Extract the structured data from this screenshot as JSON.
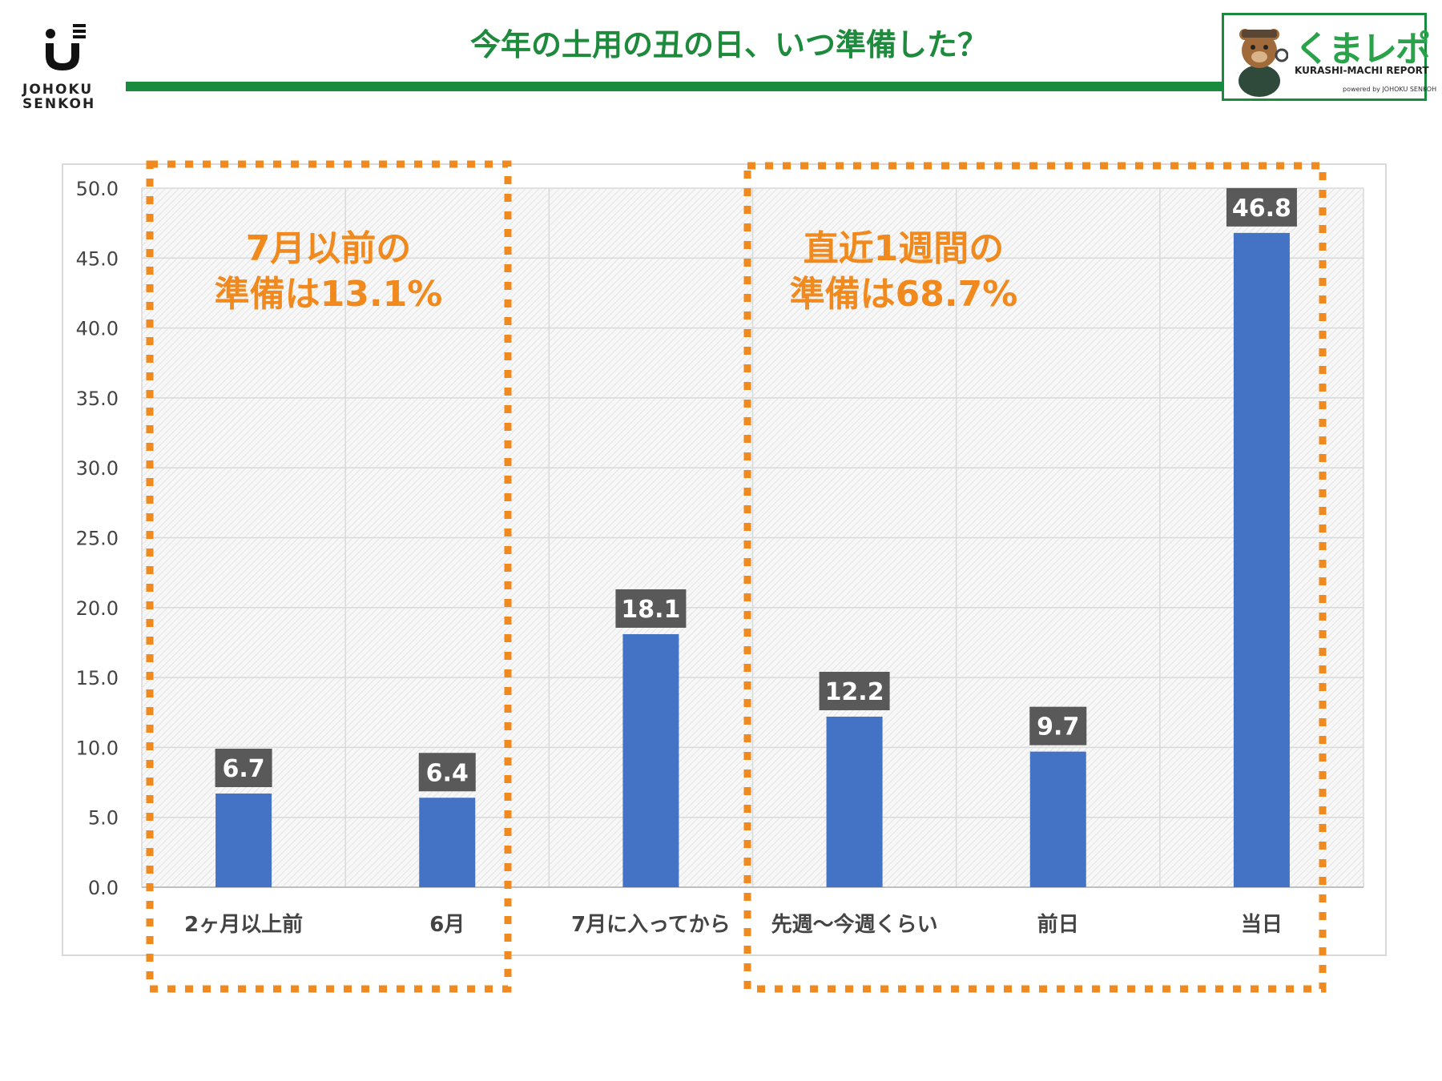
{
  "header": {
    "logo_line1": "JOHOKU",
    "logo_line2": "SENKOH",
    "title": "今年の土用の丑の日、いつ準備した？",
    "badge_title_a": "くまレポ",
    "badge_sub": "KURASHI-MACHI REPORT",
    "badge_powered": "powered by JOHOKU SENKOH"
  },
  "annotations": {
    "left_line1": "7月以前の",
    "left_line2": "準備は13.1%",
    "right_line1": "直近1週間の",
    "right_line2": "準備は68.7%"
  },
  "colors": {
    "bar": "#4472c4",
    "label_bg": "#595959",
    "highlight": "#f08a1e",
    "title": "#1d8a3c"
  },
  "chart_data": {
    "type": "bar",
    "title": "今年の土用の丑の日、いつ準備した？",
    "xlabel": "",
    "ylabel": "",
    "categories": [
      "2ヶ月以上前",
      "6月",
      "7月に入ってから",
      "先週〜今週くらい",
      "前日",
      "当日"
    ],
    "values": [
      6.7,
      6.4,
      18.1,
      12.2,
      9.7,
      46.8
    ],
    "value_labels": [
      "6.7",
      "6.4",
      "18.1",
      "12.2",
      "9.7",
      "46.8"
    ],
    "ylim": [
      0,
      50
    ],
    "yticks": [
      "0.0",
      "5.0",
      "10.0",
      "15.0",
      "20.0",
      "25.0",
      "30.0",
      "35.0",
      "40.0",
      "45.0",
      "50.0"
    ],
    "grid": true,
    "legend": "none"
  }
}
